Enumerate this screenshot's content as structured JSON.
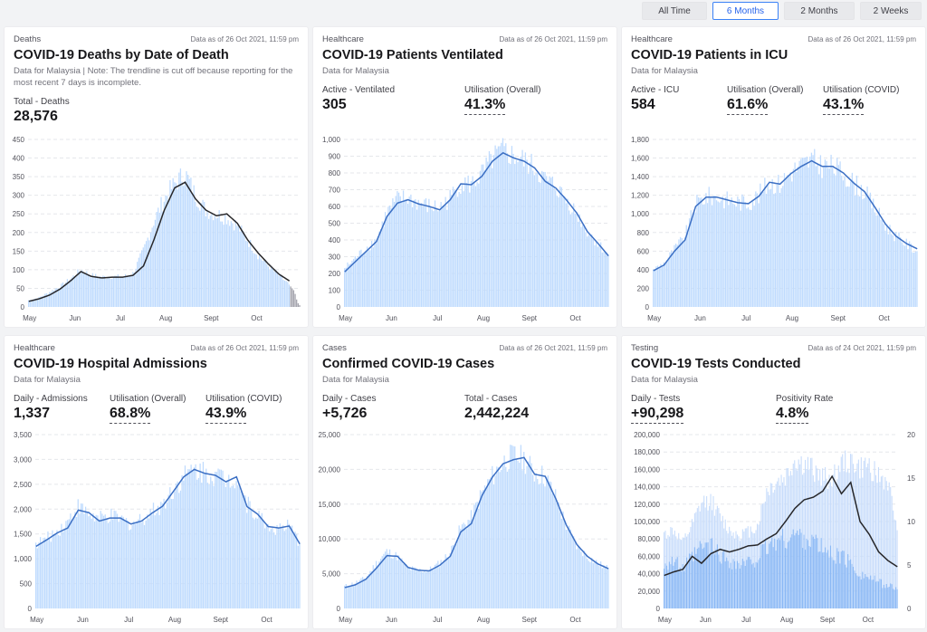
{
  "range_selector": {
    "options": [
      {
        "label": "All Time",
        "active": false
      },
      {
        "label": "6 Months",
        "active": true
      },
      {
        "label": "2 Months",
        "active": false
      },
      {
        "label": "2 Weeks",
        "active": false
      }
    ]
  },
  "cards": [
    {
      "id": "deaths",
      "category": "Deaths",
      "as_of": "Data as of 26 Oct 2021, 11:59 pm",
      "title": "COVID-19 Deaths by Date of Death",
      "description": "Data for Malaysia | Note: The trendline is cut off because reporting for the most recent 7 days is incomplete.",
      "stats": [
        {
          "label": "Total - Deaths",
          "value": "28,576",
          "dotted": false
        }
      ]
    },
    {
      "id": "ventilated",
      "category": "Healthcare",
      "as_of": "Data as of 26 Oct 2021, 11:59 pm",
      "title": "COVID-19 Patients Ventilated",
      "description": "Data for Malaysia",
      "stats": [
        {
          "label": "Active - Ventilated",
          "value": "305",
          "dotted": false
        },
        {
          "label": "Utilisation (Overall)",
          "value": "41.3%",
          "dotted": true
        }
      ]
    },
    {
      "id": "icu",
      "category": "Healthcare",
      "as_of": "Data as of 26 Oct 2021, 11:59 pm",
      "title": "COVID-19 Patients in ICU",
      "description": "Data for Malaysia",
      "stats": [
        {
          "label": "Active - ICU",
          "value": "584",
          "dotted": false
        },
        {
          "label": "Utilisation (Overall)",
          "value": "61.6%",
          "dotted": true
        },
        {
          "label": "Utilisation (COVID)",
          "value": "43.1%",
          "dotted": true
        }
      ]
    },
    {
      "id": "admissions",
      "category": "Healthcare",
      "as_of": "Data as of 26 Oct 2021, 11:59 pm",
      "title": "COVID-19 Hospital Admissions",
      "description": "Data for Malaysia",
      "stats": [
        {
          "label": "Daily - Admissions",
          "value": "1,337",
          "dotted": false
        },
        {
          "label": "Utilisation (Overall)",
          "value": "68.8%",
          "dotted": true
        },
        {
          "label": "Utilisation (COVID)",
          "value": "43.9%",
          "dotted": true
        }
      ]
    },
    {
      "id": "cases",
      "category": "Cases",
      "as_of": "Data as of 26 Oct 2021, 11:59 pm",
      "title": "Confirmed COVID-19 Cases",
      "description": "Data for Malaysia",
      "stats": [
        {
          "label": "Daily - Cases",
          "value": "+5,726",
          "dotted": false
        },
        {
          "label": "Total - Cases",
          "value": "2,442,224",
          "dotted": false
        }
      ]
    },
    {
      "id": "tests",
      "category": "Testing",
      "as_of": "Data as of 24 Oct 2021, 11:59 pm",
      "title": "COVID-19 Tests Conducted",
      "description": "Data for Malaysia",
      "stats": [
        {
          "label": "Daily - Tests",
          "value": "+90,298",
          "dotted": true
        },
        {
          "label": "Positivity Rate",
          "value": "4.8%",
          "dotted": true
        }
      ]
    }
  ],
  "chart_data": [
    {
      "id": "deaths",
      "type": "bar",
      "title": "COVID-19 Deaths by Date of Death",
      "x_labels": [
        "May",
        "Jun",
        "Jul",
        "Aug",
        "Sept",
        "Oct"
      ],
      "ylim": [
        0,
        450
      ],
      "yticks": [
        0,
        50,
        100,
        150,
        200,
        250,
        300,
        350,
        400,
        450
      ],
      "colors": {
        "bars": "#bfdbfe",
        "line": "#27272a",
        "incomplete": "#a1a1aa"
      },
      "weekly_bars": [
        18,
        25,
        40,
        55,
        75,
        100,
        85,
        80,
        82,
        80,
        90,
        150,
        230,
        290,
        330,
        360,
        300,
        260,
        250,
        240,
        220,
        180,
        140,
        110,
        85,
        60
      ],
      "weekly_trend": [
        15,
        22,
        32,
        48,
        70,
        95,
        82,
        78,
        80,
        80,
        85,
        110,
        180,
        260,
        320,
        335,
        290,
        260,
        245,
        250,
        225,
        180,
        145,
        115,
        88,
        70
      ],
      "incomplete_days": [
        55,
        50,
        45,
        35,
        20,
        10,
        5
      ]
    },
    {
      "id": "ventilated",
      "type": "bar",
      "title": "COVID-19 Patients Ventilated",
      "x_labels": [
        "May",
        "Jun",
        "Jul",
        "Aug",
        "Sept",
        "Oct"
      ],
      "ylim": [
        0,
        1000
      ],
      "yticks": [
        0,
        100,
        200,
        300,
        400,
        500,
        600,
        700,
        800,
        900,
        1000
      ],
      "colors": {
        "bars": "#bfdbfe",
        "line": "#3b6fc4"
      },
      "weekly_bars": [
        230,
        290,
        350,
        400,
        560,
        640,
        650,
        620,
        600,
        590,
        650,
        740,
        730,
        790,
        880,
        930,
        900,
        870,
        830,
        760,
        720,
        640,
        560,
        450,
        380,
        310
      ],
      "weekly_trend": [
        210,
        270,
        330,
        390,
        540,
        620,
        640,
        615,
        600,
        580,
        640,
        735,
        730,
        780,
        870,
        920,
        890,
        870,
        830,
        750,
        710,
        640,
        560,
        450,
        380,
        305
      ]
    },
    {
      "id": "icu",
      "type": "bar",
      "title": "COVID-19 Patients in ICU",
      "x_labels": [
        "May",
        "Jun",
        "Jul",
        "Aug",
        "Sept",
        "Oct"
      ],
      "ylim": [
        0,
        1800
      ],
      "yticks": [
        0,
        200,
        400,
        600,
        800,
        1000,
        1200,
        1400,
        1600,
        1800
      ],
      "colors": {
        "bars": "#bfdbfe",
        "line": "#3b6fc4"
      },
      "weekly_bars": [
        400,
        470,
        620,
        760,
        1100,
        1190,
        1180,
        1150,
        1130,
        1120,
        1200,
        1340,
        1320,
        1450,
        1520,
        1580,
        1520,
        1510,
        1440,
        1330,
        1240,
        1060,
        880,
        760,
        680,
        600
      ],
      "weekly_trend": [
        390,
        450,
        600,
        720,
        1080,
        1180,
        1180,
        1150,
        1120,
        1110,
        1190,
        1340,
        1320,
        1430,
        1510,
        1570,
        1510,
        1510,
        1440,
        1330,
        1240,
        1070,
        890,
        760,
        680,
        625
      ]
    },
    {
      "id": "admissions",
      "type": "bar",
      "title": "COVID-19 Hospital Admissions",
      "x_labels": [
        "May",
        "Jun",
        "Jul",
        "Aug",
        "Sept",
        "Oct"
      ],
      "ylim": [
        0,
        3500
      ],
      "yticks": [
        0,
        500,
        1000,
        1500,
        2000,
        2500,
        3000,
        3500
      ],
      "colors": {
        "bars": "#bfdbfe",
        "line": "#3b6fc4"
      },
      "weekly_bars": [
        1300,
        1400,
        1550,
        1750,
        2050,
        1900,
        1800,
        1850,
        1800,
        1700,
        1800,
        1950,
        2100,
        2400,
        2650,
        2800,
        2750,
        2700,
        2600,
        2650,
        2100,
        1900,
        1650,
        1600,
        1650,
        1300
      ],
      "weekly_trend": [
        1250,
        1380,
        1520,
        1620,
        1980,
        1930,
        1760,
        1820,
        1820,
        1700,
        1760,
        1920,
        2060,
        2350,
        2650,
        2800,
        2720,
        2680,
        2550,
        2650,
        2050,
        1900,
        1650,
        1620,
        1660,
        1300
      ]
    },
    {
      "id": "cases",
      "type": "bar",
      "title": "Confirmed COVID-19 Cases",
      "x_labels": [
        "May",
        "Jun",
        "Jul",
        "Aug",
        "Sept",
        "Oct"
      ],
      "ylim": [
        0,
        25000
      ],
      "yticks": [
        0,
        5000,
        10000,
        15000,
        20000,
        25000
      ],
      "colors": {
        "bars": "#bfdbfe",
        "line": "#3b6fc4"
      },
      "weekly_bars": [
        3200,
        3700,
        4400,
        6500,
        8200,
        7500,
        5800,
        5500,
        5500,
        6500,
        8000,
        11500,
        13000,
        16500,
        19000,
        21000,
        22000,
        21500,
        19500,
        19000,
        16000,
        12000,
        9000,
        7500,
        6500,
        5700
      ],
      "weekly_trend": [
        3000,
        3400,
        4200,
        5800,
        7600,
        7500,
        5900,
        5500,
        5400,
        6200,
        7500,
        11000,
        12200,
        16200,
        18900,
        20800,
        21400,
        21700,
        19300,
        19000,
        15800,
        12000,
        9200,
        7500,
        6400,
        5726
      ]
    },
    {
      "id": "tests",
      "type": "bar",
      "title": "COVID-19 Tests Conducted",
      "x_labels": [
        "May",
        "Jun",
        "Jul",
        "Aug",
        "Sept",
        "Oct"
      ],
      "ylim": [
        0,
        200000
      ],
      "yticks": [
        0,
        20000,
        40000,
        60000,
        80000,
        100000,
        120000,
        140000,
        160000,
        180000,
        200000
      ],
      "y2lim": [
        0,
        20
      ],
      "y2ticks": [
        0,
        5,
        10,
        15,
        20
      ],
      "colors": {
        "bars_total": "#c7dcfb",
        "bars_pcr": "#8ab8f5",
        "line": "#27272a"
      },
      "weekly_tests_total": [
        85000,
        90000,
        75000,
        95000,
        120000,
        125000,
        105000,
        90000,
        85000,
        88000,
        95000,
        135000,
        145000,
        150000,
        170000,
        165000,
        160000,
        150000,
        150000,
        165000,
        170000,
        160000,
        165000,
        150000,
        145000,
        90000
      ],
      "weekly_tests_pcr": [
        52000,
        55000,
        45000,
        58000,
        70000,
        72000,
        62000,
        55000,
        50000,
        52000,
        58000,
        70000,
        78000,
        80000,
        85000,
        82000,
        78000,
        68000,
        62000,
        60000,
        52000,
        40000,
        36000,
        30000,
        26000,
        22000
      ],
      "weekly_positivity": [
        3.8,
        4.2,
        4.5,
        6.0,
        5.2,
        6.3,
        6.8,
        6.5,
        6.8,
        7.2,
        7.3,
        8.0,
        8.6,
        10.0,
        11.5,
        12.5,
        12.8,
        13.5,
        15.2,
        13.2,
        14.5,
        10.0,
        8.5,
        6.5,
        5.5,
        4.8
      ],
      "y2label": "Positivity Rate"
    }
  ]
}
